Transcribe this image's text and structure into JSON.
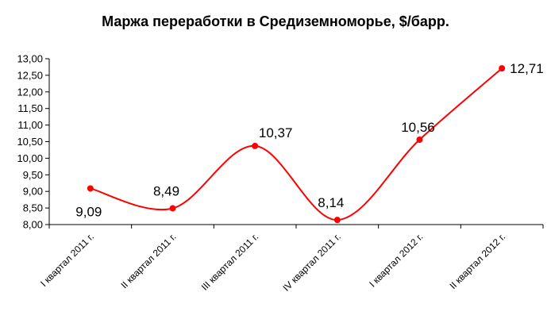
{
  "chart_data": {
    "type": "line",
    "title": "Маржа переработки в Средиземноморье, $/барр.",
    "categories": [
      "I квартал 2011 г.",
      "II квартал 2011 г.",
      "III квартал 2011 г.",
      "IV квартал 2011 г.",
      "I квартал 2012 г.",
      "II квартал 2012 г."
    ],
    "series": [
      {
        "values": [
          9.09,
          8.49,
          10.37,
          8.14,
          10.56,
          12.71
        ],
        "labels": [
          "9,09",
          "8,49",
          "10,37",
          "8,14",
          "10,56",
          "12,71"
        ],
        "color": "#ff0000",
        "smooth": true
      }
    ],
    "ylim": [
      8,
      13
    ],
    "yticks": [
      "8,00",
      "8,50",
      "9,00",
      "9,50",
      "10,00",
      "10,50",
      "11,00",
      "11,50",
      "12,00",
      "12,50",
      "13,00"
    ],
    "xlabel": "",
    "ylabel": "",
    "grid": false,
    "legend": "none"
  }
}
